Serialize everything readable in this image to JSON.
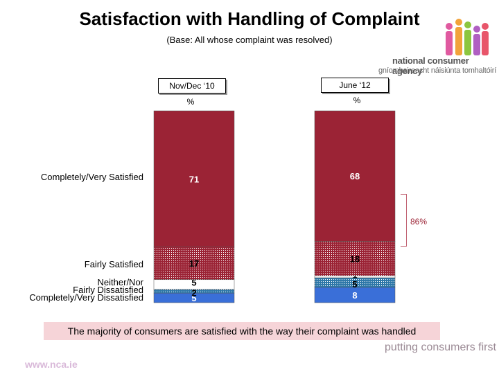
{
  "title": "Satisfaction with Handling of Complaint",
  "subtitle": "(Base: All whose complaint was resolved)",
  "logo": {
    "name": "national consumer agency",
    "irish": "gníomhaireacht náisiúnta tomhaltóirí"
  },
  "footer": {
    "summary": "The majority of consumers are satisfied with the way their complaint was handled",
    "tagline": "putting consumers first",
    "url": "www.nca.ie"
  },
  "chart_data": {
    "type": "bar",
    "stacked": true,
    "unit": "%",
    "categories": [
      "Nov/Dec ‘10",
      "June ‘12"
    ],
    "bracket_label": "86%",
    "series": [
      {
        "name": "Completely/Very Dissatisfied",
        "values": [
          5,
          8
        ],
        "color": "#3a6fd8"
      },
      {
        "name": "Fairly Dissatisfied",
        "values": [
          2,
          5
        ],
        "color": "#4a9abf"
      },
      {
        "name": "Neither/Nor",
        "values": [
          5,
          1
        ],
        "color": "#ffffff"
      },
      {
        "name": "Fairly Satisfied",
        "values": [
          17,
          18
        ],
        "color": "#c9a0a8"
      },
      {
        "name": "Completely/Very Satisfied",
        "values": [
          71,
          68
        ],
        "color": "#9b2335"
      }
    ]
  }
}
